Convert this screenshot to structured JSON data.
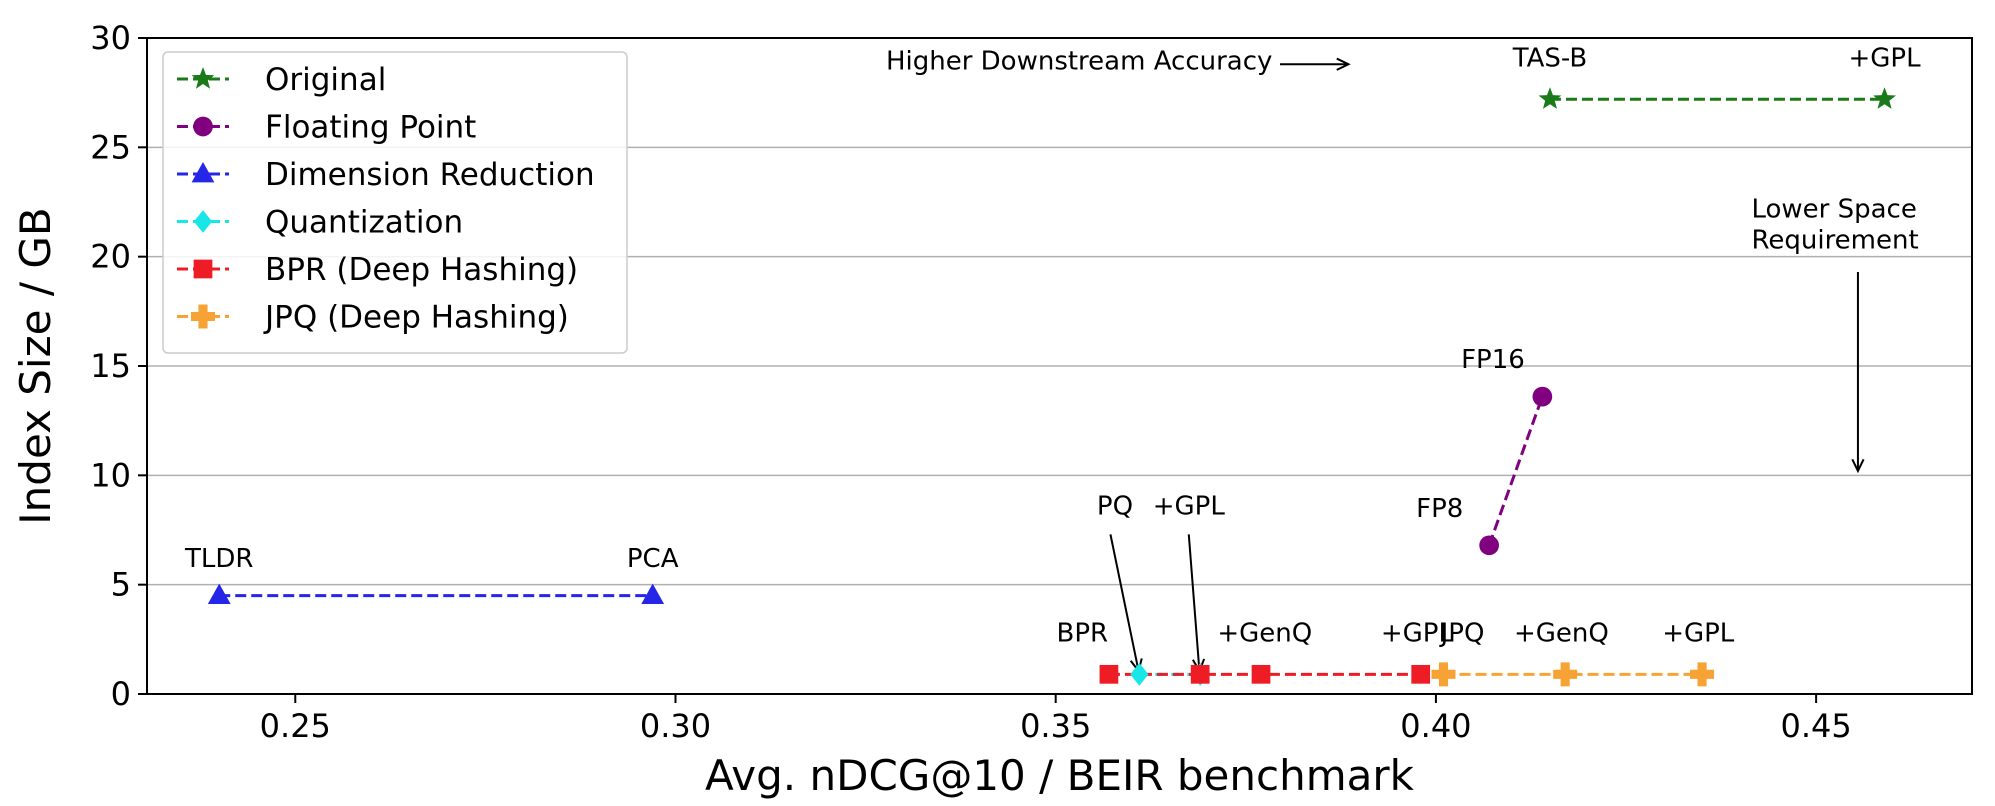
{
  "chart_data": {
    "type": "scatter",
    "title": "",
    "xlabel": "Avg. nDCG@10 / BEIR benchmark",
    "ylabel": "Index Size / GB",
    "xlim": [
      0.2305,
      0.4705
    ],
    "ylim": [
      0,
      30
    ],
    "xticks": [
      0.25,
      0.3,
      0.35,
      0.4,
      0.45
    ],
    "xtick_labels": [
      "0.25",
      "0.30",
      "0.35",
      "0.40",
      "0.45"
    ],
    "yticks": [
      0,
      5,
      10,
      15,
      20,
      25,
      30
    ],
    "ytick_labels": [
      "0",
      "5",
      "10",
      "15",
      "20",
      "25",
      "30"
    ],
    "grid": "horizontal",
    "legend_position": "top-left",
    "series": [
      {
        "name": "Original",
        "color": "#1a7a1a",
        "marker": "star",
        "x": [
          0.415,
          0.459
        ],
        "y": [
          27.2,
          27.2
        ]
      },
      {
        "name": "Floating Point",
        "color": "#800080",
        "marker": "circle",
        "x": [
          0.407,
          0.414
        ],
        "y": [
          6.8,
          13.6
        ]
      },
      {
        "name": "Dimension Reduction",
        "color": "#2626e6",
        "marker": "triangle",
        "x": [
          0.24,
          0.297
        ],
        "y": [
          4.5,
          4.5
        ]
      },
      {
        "name": "Quantization",
        "color": "#19e6e6",
        "marker": "diamond",
        "x": [
          0.361,
          0.369
        ],
        "y": [
          0.9,
          0.9
        ]
      },
      {
        "name": "BPR (Deep Hashing)",
        "color": "#ee1c25",
        "marker": "square",
        "x": [
          0.357,
          0.369,
          0.377,
          0.398
        ],
        "y": [
          0.9,
          0.9,
          0.9,
          0.9
        ]
      },
      {
        "name": "JPQ (Deep Hashing)",
        "color": "#f7a234",
        "marker": "plus",
        "x": [
          0.401,
          0.417,
          0.435
        ],
        "y": [
          0.9,
          0.9,
          0.9
        ]
      }
    ],
    "point_labels": [
      {
        "text": "TAS-B",
        "x": 0.415,
        "y": 28.7
      },
      {
        "text": "+GPL",
        "x": 0.459,
        "y": 28.7
      },
      {
        "text": "FP16",
        "x": 0.4075,
        "y": 14.9
      },
      {
        "text": "FP8",
        "x": 0.4005,
        "y": 8.1
      },
      {
        "text": "TLDR",
        "x": 0.24,
        "y": 5.8
      },
      {
        "text": "PCA",
        "x": 0.297,
        "y": 5.8
      },
      {
        "text": "PQ",
        "x": 0.3578,
        "y": 8.2
      },
      {
        "text": "+GPL",
        "x": 0.3675,
        "y": 8.2
      },
      {
        "text": "BPR",
        "x": 0.3535,
        "y": 2.4
      },
      {
        "text": "+GenQ",
        "x": 0.3775,
        "y": 2.4
      },
      {
        "text": "+GPL",
        "x": 0.3975,
        "y": 2.4
      },
      {
        "text": "JPQ",
        "x": 0.4035,
        "y": 2.4
      },
      {
        "text": "+GenQ",
        "x": 0.4165,
        "y": 2.4
      },
      {
        "text": "+GPL",
        "x": 0.4345,
        "y": 2.4
      }
    ],
    "arrows": [
      {
        "from": [
          0.3572,
          7.3
        ],
        "to": [
          0.3609,
          1.05
        ]
      },
      {
        "from": [
          0.3675,
          7.3
        ],
        "to": [
          0.3689,
          1.05
        ]
      }
    ],
    "annotations": [
      {
        "lines": [
          "Higher Downstream Accuracy"
        ],
        "anchor": "end",
        "x": 0.3785,
        "y": 28.55,
        "arrow_from": [
          0.3795,
          28.8
        ],
        "arrow_to": [
          0.3885,
          28.8
        ]
      },
      {
        "lines": [
          "Lower Space",
          "Requirement"
        ],
        "anchor": "start",
        "x": 0.4415,
        "y": 21.8,
        "arrow_from": [
          0.4555,
          19.3
        ],
        "arrow_to": [
          0.4555,
          10.2
        ]
      }
    ]
  }
}
